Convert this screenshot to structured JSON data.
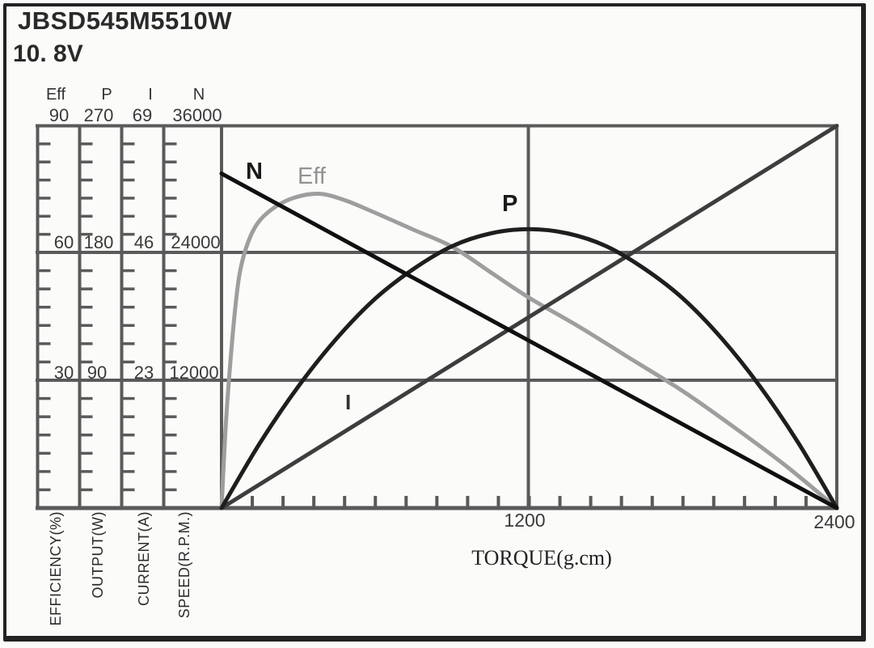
{
  "title": "JBSD545M5510W",
  "voltage": "10. 8V",
  "scales": [
    {
      "id": "eff",
      "header": "Eff",
      "axis_name": "EFFICIENCY(%)",
      "tick_labels": [
        "90",
        "60",
        "30"
      ]
    },
    {
      "id": "p",
      "header": "P",
      "axis_name": "OUTPUT(W)",
      "tick_labels": [
        "270",
        "180",
        "90"
      ]
    },
    {
      "id": "i",
      "header": "I",
      "axis_name": "CURRENT(A)",
      "tick_labels": [
        "69",
        "46",
        "23"
      ]
    },
    {
      "id": "n",
      "header": "N",
      "axis_name": "SPEED(R.P.M.)",
      "tick_labels": [
        "36000",
        "24000",
        "12000"
      ]
    }
  ],
  "x_axis": {
    "title": "TORQUE(g.cm)",
    "major_labels": [
      "1200",
      "2400"
    ]
  },
  "curve_labels": {
    "n": "N",
    "eff": "Eff",
    "p": "P",
    "i": "I"
  },
  "colors": {
    "grid": "#5a5a5a",
    "curve_n": "#101010",
    "curve_p": "#1e1e1e",
    "curve_i": "#3d3d3d",
    "curve_eff": "#9e9e9e",
    "background": "#fbfbf9",
    "border": "#232323"
  },
  "chart_data": {
    "type": "line",
    "title": "JBSD545M5510W 10.8V motor performance curves",
    "x_axis": {
      "label": "TORQUE(g.cm)",
      "min": 0,
      "max": 2400,
      "labeled_ticks": [
        1200,
        2400
      ],
      "minor_tick_step": 120
    },
    "y_axes": [
      {
        "id": "eff",
        "label": "EFFICIENCY(%)",
        "min": 0,
        "max": 90,
        "ticks": [
          30,
          60,
          90
        ]
      },
      {
        "id": "p",
        "label": "OUTPUT(W)",
        "min": 0,
        "max": 270,
        "ticks": [
          90,
          180,
          270
        ]
      },
      {
        "id": "i",
        "label": "CURRENT(A)",
        "min": 0,
        "max": 69,
        "ticks": [
          23,
          46,
          69
        ]
      },
      {
        "id": "n",
        "label": "SPEED(R.P.M.)",
        "min": 0,
        "max": 36000,
        "ticks": [
          12000,
          24000,
          36000
        ]
      }
    ],
    "series": [
      {
        "name": "Eff",
        "axis": "eff",
        "color": "#9e9e9e",
        "width": 5,
        "points": [
          [
            0,
            0
          ],
          [
            15,
            18
          ],
          [
            30,
            31
          ],
          [
            50,
            45
          ],
          [
            70,
            55
          ],
          [
            100,
            62
          ],
          [
            140,
            67
          ],
          [
            200,
            70.5
          ],
          [
            280,
            73
          ],
          [
            380,
            74
          ],
          [
            480,
            72.5
          ],
          [
            600,
            69.5
          ],
          [
            750,
            65.5
          ],
          [
            900,
            61.5
          ],
          [
            1050,
            55.5
          ],
          [
            1200,
            49.5
          ],
          [
            1400,
            42.5
          ],
          [
            1600,
            35
          ],
          [
            1800,
            27.5
          ],
          [
            2000,
            19
          ],
          [
            2200,
            10
          ],
          [
            2400,
            0
          ]
        ]
      },
      {
        "name": "I",
        "axis": "i",
        "color": "#3d3d3d",
        "width": 5,
        "points": [
          [
            0,
            0
          ],
          [
            2400,
            69
          ]
        ]
      },
      {
        "name": "P",
        "axis": "p",
        "color": "#1e1e1e",
        "width": 5,
        "points": [
          [
            0,
            0
          ],
          [
            150,
            46
          ],
          [
            300,
            86
          ],
          [
            450,
            120
          ],
          [
            600,
            148
          ],
          [
            750,
            169
          ],
          [
            900,
            185
          ],
          [
            1050,
            194
          ],
          [
            1200,
            197
          ],
          [
            1350,
            194
          ],
          [
            1500,
            185
          ],
          [
            1650,
            169
          ],
          [
            1800,
            148
          ],
          [
            1950,
            120
          ],
          [
            2100,
            86
          ],
          [
            2250,
            46
          ],
          [
            2400,
            0
          ]
        ]
      },
      {
        "name": "N",
        "axis": "n",
        "color": "#101010",
        "width": 5,
        "points": [
          [
            0,
            31500
          ],
          [
            2400,
            0
          ]
        ]
      }
    ]
  }
}
